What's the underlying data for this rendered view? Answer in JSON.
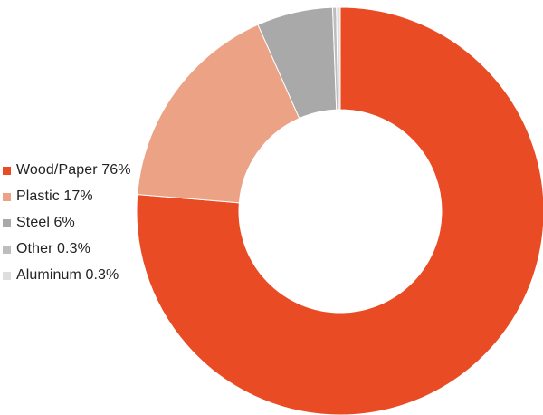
{
  "chart_data": {
    "type": "pie",
    "variant": "donut",
    "title": "",
    "slices": [
      {
        "label": "Wood/Paper 76%",
        "name": "Wood/Paper",
        "value": 76,
        "color": "#e94b24"
      },
      {
        "label": "Plastic 17%",
        "name": "Plastic",
        "value": 17,
        "color": "#eba285"
      },
      {
        "label": "Steel 6%",
        "name": "Steel",
        "value": 6,
        "color": "#a9a9a9"
      },
      {
        "label": "Other 0.3%",
        "name": "Other",
        "value": 0.3,
        "color": "#bdbdbd"
      },
      {
        "label": "Aluminum 0.3%",
        "name": "Aluminum",
        "value": 0.3,
        "color": "#dedede"
      }
    ],
    "legend_position": "left",
    "start_angle": "12 o'clock",
    "direction": "clockwise"
  }
}
